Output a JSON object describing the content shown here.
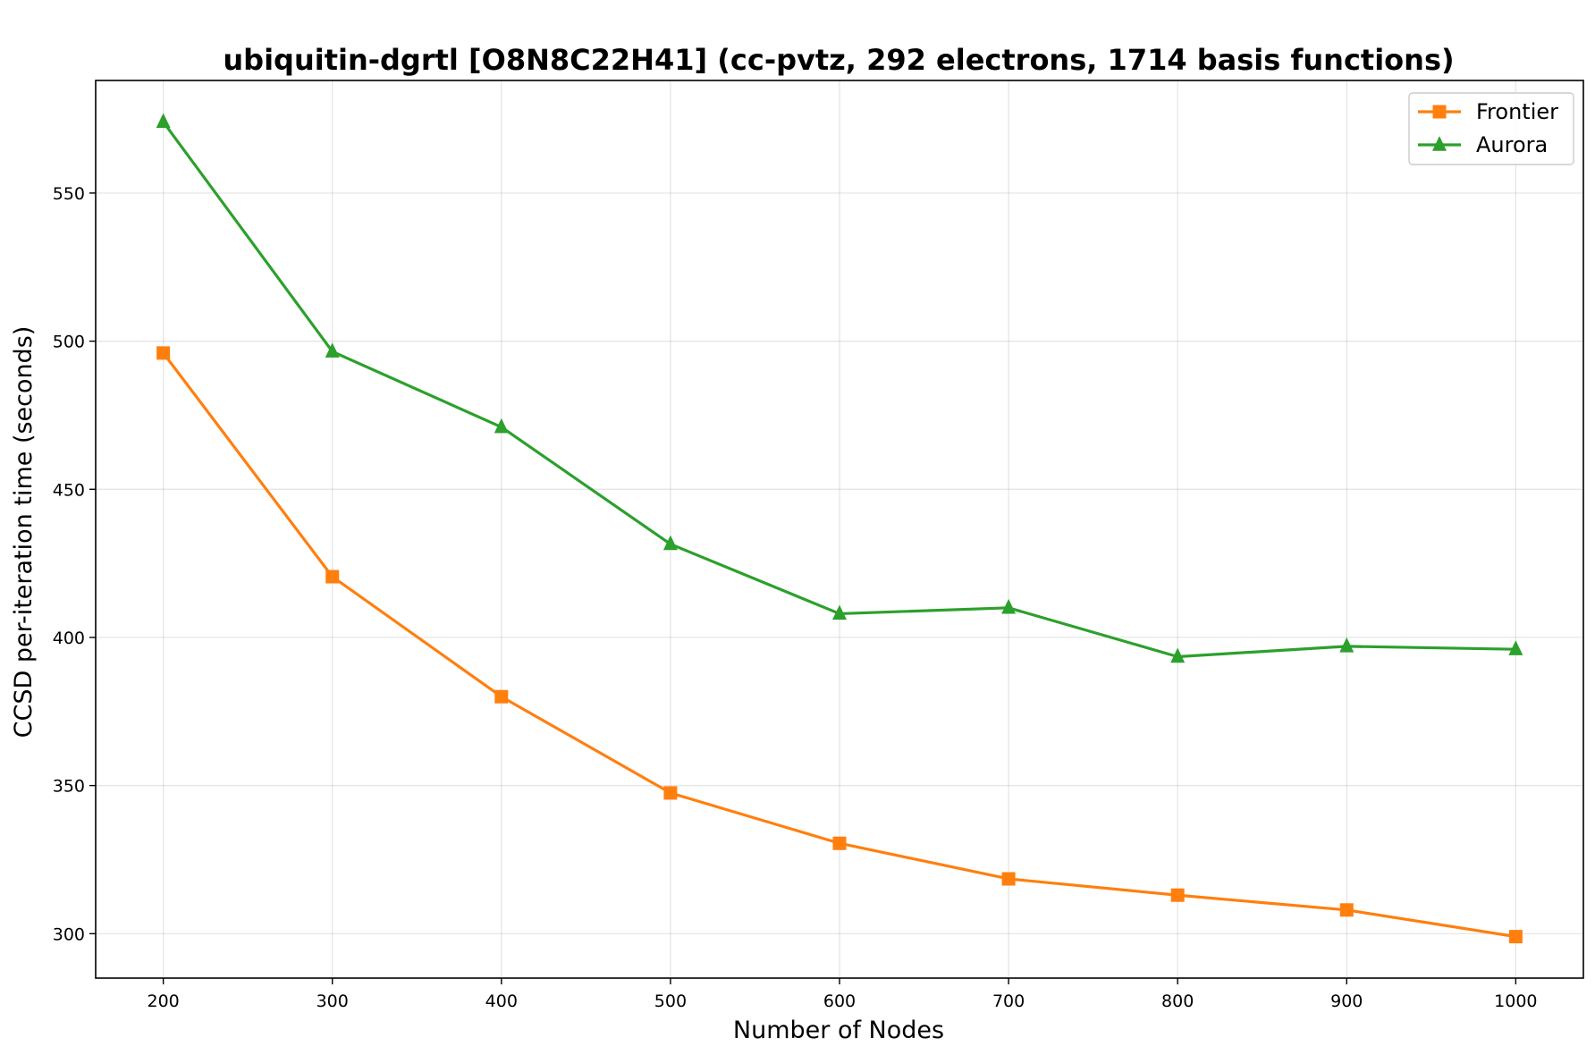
{
  "chart_data": {
    "type": "line",
    "title": "ubiquitin-dgrtl [O8N8C22H41] (cc-pvtz, 292 electrons, 1714 basis functions)",
    "xlabel": "Number of Nodes",
    "ylabel": "CCSD per-iteration time (seconds)",
    "x": [
      200,
      300,
      400,
      500,
      600,
      700,
      800,
      900,
      1000
    ],
    "x_ticks": [
      "200",
      "300",
      "400",
      "500",
      "600",
      "700",
      "800",
      "900",
      "1000"
    ],
    "y_ticks": [
      "300",
      "350",
      "400",
      "450",
      "500",
      "550"
    ],
    "xlim": [
      160,
      1040
    ],
    "ylim": [
      285,
      588
    ],
    "grid": true,
    "legend_position": "upper right",
    "series": [
      {
        "name": "Frontier",
        "color": "#ff7f0e",
        "marker": "square",
        "values": [
          496,
          420.5,
          380,
          347.5,
          330.5,
          318.5,
          313,
          308,
          299
        ]
      },
      {
        "name": "Aurora",
        "color": "#2ca02c",
        "marker": "triangle",
        "values": [
          574,
          496.5,
          471,
          431.5,
          408,
          410,
          393.5,
          397,
          396
        ]
      }
    ]
  }
}
